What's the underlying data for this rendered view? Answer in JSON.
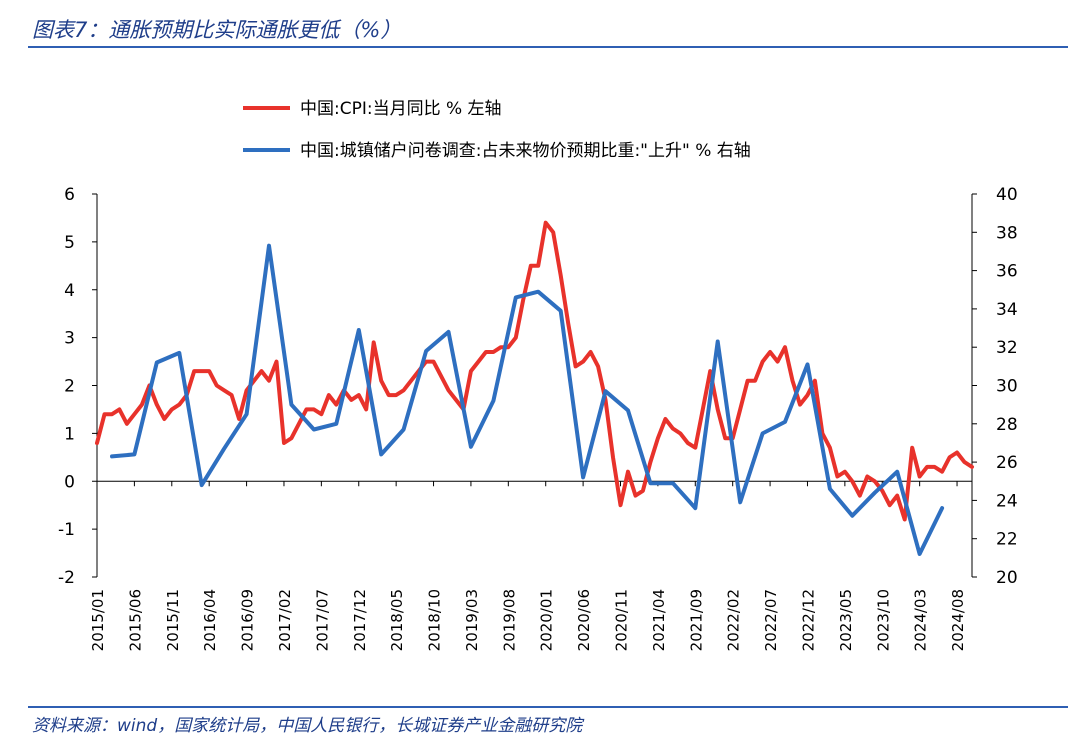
{
  "header": {
    "title": "图表7：通胀预期比实际通胀更低（%）"
  },
  "footer": {
    "source": "资料来源：wind，国家统计局，中国人民银行，长城证券产业金融研究院"
  },
  "chart_data": {
    "type": "line",
    "x_ticks": [
      "2015/01",
      "2015/06",
      "2015/11",
      "2016/04",
      "2016/09",
      "2017/02",
      "2017/07",
      "2017/12",
      "2018/05",
      "2018/10",
      "2019/03",
      "2019/08",
      "2020/01",
      "2020/06",
      "2020/11",
      "2021/04",
      "2021/09",
      "2022/02",
      "2022/07",
      "2022/12",
      "2023/05",
      "2023/10",
      "2024/03",
      "2024/08"
    ],
    "y_left": {
      "min": -2,
      "max": 6,
      "ticks": [
        -2,
        -1,
        0,
        1,
        2,
        3,
        4,
        5,
        6
      ]
    },
    "y_right": {
      "min": 20,
      "max": 40,
      "ticks": [
        20,
        22,
        24,
        26,
        28,
        30,
        32,
        34,
        36,
        38,
        40
      ]
    },
    "legend_position": "top",
    "series": [
      {
        "name": "中国:CPI:当月同比 % 左轴",
        "axis": "left",
        "color": "#e8322b",
        "points": [
          [
            "2015/01",
            0.8
          ],
          [
            "2015/02",
            1.4
          ],
          [
            "2015/03",
            1.4
          ],
          [
            "2015/04",
            1.5
          ],
          [
            "2015/05",
            1.2
          ],
          [
            "2015/06",
            1.4
          ],
          [
            "2015/07",
            1.6
          ],
          [
            "2015/08",
            2.0
          ],
          [
            "2015/09",
            1.6
          ],
          [
            "2015/10",
            1.3
          ],
          [
            "2015/11",
            1.5
          ],
          [
            "2015/12",
            1.6
          ],
          [
            "2016/01",
            1.8
          ],
          [
            "2016/02",
            2.3
          ],
          [
            "2016/03",
            2.3
          ],
          [
            "2016/04",
            2.3
          ],
          [
            "2016/05",
            2.0
          ],
          [
            "2016/06",
            1.9
          ],
          [
            "2016/07",
            1.8
          ],
          [
            "2016/08",
            1.3
          ],
          [
            "2016/09",
            1.9
          ],
          [
            "2016/10",
            2.1
          ],
          [
            "2016/11",
            2.3
          ],
          [
            "2016/12",
            2.1
          ],
          [
            "2017/01",
            2.5
          ],
          [
            "2017/02",
            0.8
          ],
          [
            "2017/03",
            0.9
          ],
          [
            "2017/04",
            1.2
          ],
          [
            "2017/05",
            1.5
          ],
          [
            "2017/06",
            1.5
          ],
          [
            "2017/07",
            1.4
          ],
          [
            "2017/08",
            1.8
          ],
          [
            "2017/09",
            1.6
          ],
          [
            "2017/10",
            1.9
          ],
          [
            "2017/11",
            1.7
          ],
          [
            "2017/12",
            1.8
          ],
          [
            "2018/01",
            1.5
          ],
          [
            "2018/02",
            2.9
          ],
          [
            "2018/03",
            2.1
          ],
          [
            "2018/04",
            1.8
          ],
          [
            "2018/05",
            1.8
          ],
          [
            "2018/06",
            1.9
          ],
          [
            "2018/07",
            2.1
          ],
          [
            "2018/08",
            2.3
          ],
          [
            "2018/09",
            2.5
          ],
          [
            "2018/10",
            2.5
          ],
          [
            "2018/11",
            2.2
          ],
          [
            "2018/12",
            1.9
          ],
          [
            "2019/01",
            1.7
          ],
          [
            "2019/02",
            1.5
          ],
          [
            "2019/03",
            2.3
          ],
          [
            "2019/04",
            2.5
          ],
          [
            "2019/05",
            2.7
          ],
          [
            "2019/06",
            2.7
          ],
          [
            "2019/07",
            2.8
          ],
          [
            "2019/08",
            2.8
          ],
          [
            "2019/09",
            3.0
          ],
          [
            "2019/10",
            3.8
          ],
          [
            "2019/11",
            4.5
          ],
          [
            "2019/12",
            4.5
          ],
          [
            "2020/01",
            5.4
          ],
          [
            "2020/02",
            5.2
          ],
          [
            "2020/03",
            4.3
          ],
          [
            "2020/04",
            3.3
          ],
          [
            "2020/05",
            2.4
          ],
          [
            "2020/06",
            2.5
          ],
          [
            "2020/07",
            2.7
          ],
          [
            "2020/08",
            2.4
          ],
          [
            "2020/09",
            1.7
          ],
          [
            "2020/10",
            0.5
          ],
          [
            "2020/11",
            -0.5
          ],
          [
            "2020/12",
            0.2
          ],
          [
            "2021/01",
            -0.3
          ],
          [
            "2021/02",
            -0.2
          ],
          [
            "2021/03",
            0.4
          ],
          [
            "2021/04",
            0.9
          ],
          [
            "2021/05",
            1.3
          ],
          [
            "2021/06",
            1.1
          ],
          [
            "2021/07",
            1.0
          ],
          [
            "2021/08",
            0.8
          ],
          [
            "2021/09",
            0.7
          ],
          [
            "2021/10",
            1.5
          ],
          [
            "2021/11",
            2.3
          ],
          [
            "2021/12",
            1.5
          ],
          [
            "2022/01",
            0.9
          ],
          [
            "2022/02",
            0.9
          ],
          [
            "2022/03",
            1.5
          ],
          [
            "2022/04",
            2.1
          ],
          [
            "2022/05",
            2.1
          ],
          [
            "2022/06",
            2.5
          ],
          [
            "2022/07",
            2.7
          ],
          [
            "2022/08",
            2.5
          ],
          [
            "2022/09",
            2.8
          ],
          [
            "2022/10",
            2.1
          ],
          [
            "2022/11",
            1.6
          ],
          [
            "2022/12",
            1.8
          ],
          [
            "2023/01",
            2.1
          ],
          [
            "2023/02",
            1.0
          ],
          [
            "2023/03",
            0.7
          ],
          [
            "2023/04",
            0.1
          ],
          [
            "2023/05",
            0.2
          ],
          [
            "2023/06",
            0.0
          ],
          [
            "2023/07",
            -0.3
          ],
          [
            "2023/08",
            0.1
          ],
          [
            "2023/09",
            0.0
          ],
          [
            "2023/10",
            -0.2
          ],
          [
            "2023/11",
            -0.5
          ],
          [
            "2023/12",
            -0.3
          ],
          [
            "2024/01",
            -0.8
          ],
          [
            "2024/02",
            0.7
          ],
          [
            "2024/03",
            0.1
          ],
          [
            "2024/04",
            0.3
          ],
          [
            "2024/05",
            0.3
          ],
          [
            "2024/06",
            0.2
          ],
          [
            "2024/07",
            0.5
          ],
          [
            "2024/08",
            0.6
          ],
          [
            "2024/09",
            0.4
          ],
          [
            "2024/10",
            0.3
          ]
        ]
      },
      {
        "name": "中国:城镇储户问卷调查:占未来物价预期比重:\"上升\" % 右轴",
        "axis": "right",
        "color": "#2e6fc0",
        "points": [
          [
            "2015/03",
            26.3
          ],
          [
            "2015/06",
            26.4
          ],
          [
            "2015/09",
            31.2
          ],
          [
            "2015/12",
            31.7
          ],
          [
            "2016/03",
            24.8
          ],
          [
            "2016/06",
            26.7
          ],
          [
            "2016/09",
            28.5
          ],
          [
            "2016/12",
            37.3
          ],
          [
            "2017/03",
            29.0
          ],
          [
            "2017/06",
            27.7
          ],
          [
            "2017/09",
            28.0
          ],
          [
            "2017/12",
            32.9
          ],
          [
            "2018/03",
            26.4
          ],
          [
            "2018/06",
            27.7
          ],
          [
            "2018/09",
            31.8
          ],
          [
            "2018/12",
            32.8
          ],
          [
            "2019/03",
            26.8
          ],
          [
            "2019/06",
            29.2
          ],
          [
            "2019/09",
            34.6
          ],
          [
            "2019/12",
            34.9
          ],
          [
            "2020/03",
            33.9
          ],
          [
            "2020/06",
            25.2
          ],
          [
            "2020/09",
            29.7
          ],
          [
            "2020/12",
            28.7
          ],
          [
            "2021/03",
            24.9
          ],
          [
            "2021/06",
            24.9
          ],
          [
            "2021/09",
            23.6
          ],
          [
            "2021/12",
            32.3
          ],
          [
            "2022/03",
            23.9
          ],
          [
            "2022/06",
            27.5
          ],
          [
            "2022/09",
            28.1
          ],
          [
            "2022/12",
            31.1
          ],
          [
            "2023/03",
            24.6
          ],
          [
            "2023/06",
            23.2
          ],
          [
            "2023/09",
            24.4
          ],
          [
            "2023/12",
            25.5
          ],
          [
            "2024/03",
            21.2
          ],
          [
            "2024/06",
            23.6
          ]
        ]
      }
    ]
  }
}
